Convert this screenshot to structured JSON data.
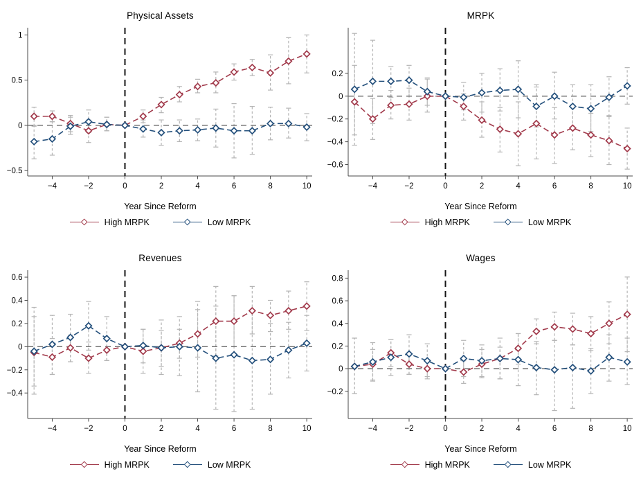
{
  "colors": {
    "high": "#A23B4C",
    "low": "#24507C",
    "ci": "#B5B5B5",
    "zero_line": "#6F6F6F",
    "event_line": "#161616",
    "axis": "#4A4A4A"
  },
  "legend": {
    "high": "High MRPK",
    "low": "Low MRPK"
  },
  "chart_data": [
    {
      "type": "line",
      "title": "Physical Assets",
      "xlabel": "Year Since Reform",
      "legend_position": "bottom",
      "grid": false,
      "x": [
        -5,
        -4,
        -3,
        -2,
        -1,
        0,
        1,
        2,
        3,
        4,
        5,
        6,
        7,
        8,
        9,
        10
      ],
      "xticks": [
        -4,
        -2,
        0,
        2,
        4,
        6,
        8,
        10
      ],
      "yticks": [
        1,
        0.5,
        0,
        -0.5
      ],
      "xlim": [
        -5.35,
        10.3
      ],
      "ylim": [
        -0.56,
        1.08
      ],
      "ref_vline_x": 0,
      "ref_hline_y": 0,
      "series": [
        {
          "name": "High MRPK",
          "color": "high",
          "values": [
            0.1,
            0.1,
            0.02,
            -0.06,
            0.01,
            0,
            0.1,
            0.23,
            0.34,
            0.43,
            0.47,
            0.59,
            0.64,
            0.58,
            0.71,
            0.79
          ],
          "ci_low": [
            -0.01,
            0.04,
            -0.07,
            -0.19,
            -0.06,
            0,
            0.03,
            0.14,
            0.26,
            0.36,
            0.36,
            0.5,
            0.55,
            0.39,
            0.46,
            0.58
          ],
          "ci_high": [
            0.2,
            0.16,
            0.11,
            0.06,
            0.09,
            0,
            0.17,
            0.31,
            0.43,
            0.51,
            0.59,
            0.68,
            0.73,
            0.78,
            0.97,
            1.0
          ]
        },
        {
          "name": "Low MRPK",
          "color": "low",
          "values": [
            -0.18,
            -0.15,
            -0.01,
            0.04,
            0.01,
            0,
            -0.04,
            -0.08,
            -0.06,
            -0.05,
            -0.03,
            -0.06,
            -0.06,
            0.02,
            0.02,
            -0.02
          ],
          "ci_low": [
            -0.37,
            -0.33,
            -0.1,
            -0.08,
            -0.06,
            0,
            -0.13,
            -0.22,
            -0.18,
            -0.17,
            -0.24,
            -0.36,
            -0.32,
            -0.16,
            -0.14,
            -0.17
          ],
          "ci_high": [
            0.0,
            0.04,
            0.09,
            0.17,
            0.09,
            0,
            0.06,
            0.06,
            0.06,
            0.07,
            0.18,
            0.24,
            0.21,
            0.2,
            0.19,
            0.13
          ]
        }
      ]
    },
    {
      "type": "line",
      "title": "MRPK",
      "xlabel": "Year Since Reform",
      "legend_position": "bottom",
      "grid": false,
      "x": [
        -5,
        -4,
        -3,
        -2,
        -1,
        0,
        1,
        2,
        3,
        4,
        5,
        6,
        7,
        8,
        9,
        10
      ],
      "xticks": [
        -4,
        -2,
        0,
        2,
        4,
        6,
        8,
        10
      ],
      "yticks": [
        0.2,
        0,
        -0.2,
        -0.4,
        -0.6
      ],
      "xlim": [
        -5.35,
        10.3
      ],
      "ylim": [
        -0.7,
        0.6
      ],
      "ref_vline_x": 0,
      "ref_hline_y": 0,
      "series": [
        {
          "name": "High MRPK",
          "color": "high",
          "values": [
            -0.05,
            -0.2,
            -0.08,
            -0.07,
            0.0,
            0,
            -0.09,
            -0.21,
            -0.29,
            -0.33,
            -0.24,
            -0.34,
            -0.28,
            -0.34,
            -0.39,
            -0.46
          ],
          "ci_low": [
            -0.43,
            -0.38,
            -0.2,
            -0.21,
            -0.14,
            0,
            -0.21,
            -0.36,
            -0.49,
            -0.61,
            -0.55,
            -0.59,
            -0.47,
            -0.53,
            -0.6,
            -0.64
          ],
          "ci_high": [
            0.27,
            -0.02,
            0.05,
            0.07,
            0.15,
            0,
            0.02,
            -0.05,
            -0.1,
            -0.05,
            0.08,
            -0.1,
            -0.08,
            -0.15,
            -0.17,
            -0.28
          ]
        },
        {
          "name": "Low MRPK",
          "color": "low",
          "values": [
            0.06,
            0.13,
            0.13,
            0.14,
            0.04,
            0,
            -0.01,
            0.03,
            0.05,
            0.06,
            -0.09,
            0.0,
            -0.09,
            -0.11,
            -0.01,
            0.09
          ],
          "ci_low": [
            -0.34,
            -0.24,
            -0.01,
            0.0,
            -0.08,
            0,
            -0.12,
            -0.14,
            -0.13,
            -0.19,
            -0.27,
            -0.2,
            -0.28,
            -0.31,
            -0.18,
            -0.07
          ],
          "ci_high": [
            0.55,
            0.49,
            0.26,
            0.27,
            0.16,
            0,
            0.12,
            0.2,
            0.24,
            0.31,
            0.1,
            0.21,
            0.1,
            0.1,
            0.17,
            0.25
          ]
        }
      ]
    },
    {
      "type": "line",
      "title": "Revenues",
      "xlabel": "Year Since Reform",
      "legend_position": "bottom",
      "grid": false,
      "x": [
        -5,
        -4,
        -3,
        -2,
        -1,
        0,
        1,
        2,
        3,
        4,
        5,
        6,
        7,
        8,
        9,
        10
      ],
      "xticks": [
        -4,
        -2,
        0,
        2,
        4,
        6,
        8,
        10
      ],
      "yticks": [
        0.6,
        0.4,
        0.2,
        0,
        -0.2,
        -0.4
      ],
      "xlim": [
        -5.35,
        10.3
      ],
      "ylim": [
        -0.62,
        0.66
      ],
      "ref_vline_x": 0,
      "ref_hline_y": 0,
      "series": [
        {
          "name": "High MRPK",
          "color": "high",
          "values": [
            -0.05,
            -0.09,
            -0.01,
            -0.1,
            -0.03,
            0,
            -0.04,
            -0.01,
            0.03,
            0.11,
            0.22,
            0.22,
            0.31,
            0.27,
            0.31,
            0.35
          ],
          "ci_low": [
            -0.41,
            -0.24,
            -0.13,
            -0.23,
            -0.12,
            0,
            -0.23,
            -0.17,
            -0.1,
            -0.09,
            -0.08,
            0.0,
            0.11,
            0.13,
            0.15,
            0.14
          ],
          "ci_high": [
            0.34,
            0.07,
            0.1,
            0.04,
            0.07,
            0,
            0.15,
            0.14,
            0.15,
            0.32,
            0.52,
            0.44,
            0.52,
            0.4,
            0.48,
            0.56
          ]
        },
        {
          "name": "Low MRPK",
          "color": "low",
          "values": [
            -0.04,
            0.02,
            0.08,
            0.18,
            0.07,
            0,
            0.01,
            -0.01,
            0.0,
            -0.01,
            -0.1,
            -0.07,
            -0.12,
            -0.11,
            -0.03,
            0.03
          ],
          "ci_low": [
            -0.34,
            -0.24,
            -0.13,
            -0.03,
            -0.12,
            0,
            -0.14,
            -0.24,
            -0.25,
            -0.39,
            -0.54,
            -0.56,
            -0.54,
            -0.41,
            -0.27,
            -0.21
          ],
          "ci_high": [
            0.26,
            0.27,
            0.28,
            0.39,
            0.26,
            0,
            0.15,
            0.23,
            0.26,
            0.39,
            0.35,
            0.44,
            0.3,
            0.2,
            0.21,
            0.27
          ]
        }
      ]
    },
    {
      "type": "line",
      "title": "Wages",
      "xlabel": "Year Since Reform",
      "legend_position": "bottom",
      "grid": false,
      "x": [
        -5,
        -4,
        -3,
        -2,
        -1,
        0,
        1,
        2,
        3,
        4,
        5,
        6,
        7,
        8,
        9,
        10
      ],
      "xticks": [
        -4,
        -2,
        0,
        2,
        4,
        6,
        8,
        10
      ],
      "yticks": [
        0.8,
        0.6,
        0.4,
        0.2,
        0,
        -0.2
      ],
      "xlim": [
        -5.35,
        10.3
      ],
      "ylim": [
        -0.44,
        0.87
      ],
      "ref_vline_x": 0,
      "ref_hline_y": 0,
      "series": [
        {
          "name": "High MRPK",
          "color": "high",
          "values": [
            0.02,
            0.04,
            0.14,
            0.04,
            0.0,
            0,
            -0.03,
            0.04,
            0.09,
            0.18,
            0.33,
            0.37,
            0.35,
            0.31,
            0.4,
            0.48
          ],
          "ci_low": [
            -0.22,
            -0.1,
            0.02,
            -0.05,
            -0.07,
            0,
            -0.13,
            -0.08,
            -0.09,
            0.04,
            0.22,
            0.25,
            0.21,
            0.16,
            0.22,
            0.15
          ],
          "ci_high": [
            0.27,
            0.17,
            0.26,
            0.12,
            0.07,
            0,
            0.07,
            0.17,
            0.27,
            0.31,
            0.44,
            0.5,
            0.49,
            0.46,
            0.59,
            0.81
          ]
        },
        {
          "name": "Low MRPK",
          "color": "low",
          "values": [
            0.02,
            0.06,
            0.1,
            0.13,
            0.07,
            0,
            0.09,
            0.07,
            0.09,
            0.08,
            0.01,
            -0.01,
            0.01,
            -0.02,
            0.1,
            0.06
          ],
          "ci_low": [
            -0.22,
            -0.11,
            -0.06,
            -0.05,
            -0.09,
            0,
            -0.07,
            -0.07,
            -0.09,
            -0.15,
            -0.23,
            -0.37,
            -0.35,
            -0.22,
            -0.11,
            -0.14
          ],
          "ci_high": [
            0.27,
            0.23,
            0.26,
            0.3,
            0.22,
            0,
            0.25,
            0.21,
            0.19,
            0.31,
            0.24,
            0.25,
            0.21,
            0.18,
            0.3,
            0.27
          ]
        }
      ]
    }
  ]
}
